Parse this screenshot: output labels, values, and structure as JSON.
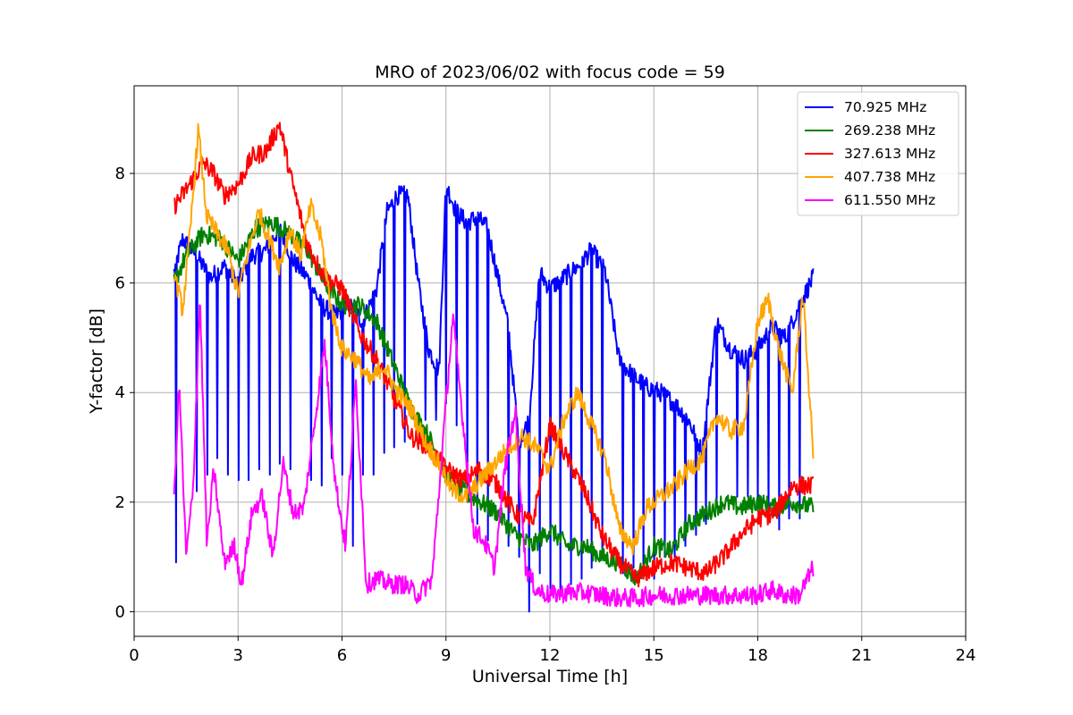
{
  "chart_data": {
    "type": "line",
    "title": "MRO of 2023/06/02 with focus code = 59",
    "xlabel": "Universal Time [h]",
    "ylabel": "Y-factor [dB]",
    "xlim": [
      0,
      24
    ],
    "ylim": [
      -0.45,
      9.6
    ],
    "x_ticks": [
      0,
      3,
      6,
      9,
      12,
      15,
      18,
      21,
      24
    ],
    "y_ticks": [
      0,
      2,
      4,
      6,
      8
    ],
    "grid": true,
    "legend_position": "top-right",
    "series": [
      {
        "name": " 70.925 MHz",
        "color": "#0000ff",
        "x": [
          1.15,
          1.4,
          1.8,
          2.2,
          2.6,
          3.0,
          3.4,
          3.8,
          4.2,
          4.6,
          5.0,
          5.4,
          5.8,
          6.2,
          6.6,
          7.0,
          7.3,
          7.6,
          7.9,
          8.2,
          8.5,
          8.8,
          9.0,
          9.3,
          9.6,
          9.9,
          10.2,
          10.5,
          10.8,
          11.1,
          11.4,
          11.7,
          12.0,
          12.4,
          12.8,
          13.2,
          13.6,
          14.0,
          14.4,
          14.8,
          15.2,
          15.6,
          16.0,
          16.4,
          16.8,
          17.2,
          17.6,
          18.0,
          18.4,
          18.8,
          19.2,
          19.6
        ],
        "y": [
          6.2,
          6.8,
          6.5,
          6.1,
          6.3,
          6.0,
          6.5,
          6.6,
          7.0,
          6.4,
          6.1,
          5.6,
          5.4,
          5.6,
          5.3,
          5.9,
          7.3,
          7.6,
          7.6,
          6.0,
          4.8,
          4.4,
          7.8,
          7.3,
          7.1,
          7.2,
          7.0,
          6.1,
          5.2,
          3.1,
          3.5,
          6.2,
          5.9,
          6.1,
          6.3,
          6.6,
          6.2,
          4.6,
          4.3,
          4.1,
          4.0,
          3.8,
          3.5,
          2.9,
          5.3,
          4.8,
          4.6,
          4.8,
          5.2,
          5.0,
          5.6,
          6.1
        ],
        "dips": [
          0.9,
          2.2,
          2.5,
          2.8,
          2.5,
          2.4,
          2.6,
          2.5,
          2.7,
          2.6,
          2.4,
          2.3,
          2.8,
          2.5,
          1.2,
          2.5,
          2.9,
          3.0,
          3.1,
          3.3,
          3.5,
          3.8,
          3.4,
          2.0,
          1.6,
          1.3,
          1.2,
          1.0,
          0.0,
          0.7,
          0.4,
          0.5,
          0.6,
          0.8,
          1.0,
          0.7,
          0.8,
          0.6,
          0.6,
          1.0,
          1.2,
          1.4,
          1.6,
          1.9,
          2.1,
          2.1,
          2.0,
          1.8,
          1.5,
          1.7,
          2.2,
          6.1
        ]
      },
      {
        "name": "269.238 MHz",
        "color": "#008000",
        "x": [
          1.15,
          1.5,
          2.0,
          2.5,
          3.0,
          3.5,
          4.0,
          4.5,
          5.0,
          5.5,
          6.0,
          6.5,
          7.0,
          7.5,
          8.0,
          8.5,
          9.0,
          9.5,
          10.0,
          10.5,
          11.0,
          11.5,
          12.0,
          12.5,
          13.0,
          13.5,
          14.0,
          14.5,
          15.0,
          15.5,
          16.0,
          16.5,
          17.0,
          17.5,
          18.0,
          18.5,
          19.0,
          19.6
        ],
        "y": [
          6.0,
          6.5,
          6.9,
          6.8,
          6.4,
          7.0,
          7.1,
          6.9,
          6.6,
          6.0,
          5.6,
          5.6,
          5.3,
          4.5,
          3.7,
          3.2,
          2.5,
          2.2,
          2.0,
          1.8,
          1.4,
          1.2,
          1.5,
          1.2,
          1.2,
          1.0,
          0.9,
          0.6,
          1.2,
          1.1,
          1.6,
          1.8,
          2.0,
          1.9,
          2.0,
          1.9,
          2.0,
          1.9
        ]
      },
      {
        "name": "327.613 MHz",
        "color": "#ff0000",
        "x": [
          1.15,
          1.5,
          2.0,
          2.3,
          2.6,
          3.0,
          3.4,
          3.8,
          4.2,
          4.5,
          5.0,
          5.5,
          6.0,
          6.5,
          7.0,
          7.5,
          8.0,
          8.5,
          9.0,
          9.5,
          10.0,
          10.5,
          11.0,
          11.5,
          12.0,
          12.5,
          13.0,
          13.5,
          14.0,
          14.5,
          15.0,
          15.5,
          16.0,
          16.5,
          17.0,
          17.5,
          18.0,
          18.5,
          19.0,
          19.6
        ],
        "y": [
          7.4,
          7.7,
          8.2,
          8.0,
          7.6,
          7.8,
          8.3,
          8.4,
          8.9,
          8.0,
          6.7,
          6.1,
          5.9,
          5.1,
          4.6,
          3.9,
          3.2,
          3.0,
          2.6,
          2.4,
          2.6,
          2.3,
          1.8,
          1.6,
          3.4,
          2.8,
          2.2,
          1.4,
          0.9,
          0.6,
          0.8,
          0.9,
          0.8,
          0.7,
          1.0,
          1.4,
          1.7,
          1.8,
          2.3,
          2.3
        ]
      },
      {
        "name": "407.738 MHz",
        "color": "#ffa500",
        "x": [
          1.15,
          1.4,
          1.6,
          1.85,
          2.1,
          2.4,
          2.7,
          3.0,
          3.3,
          3.6,
          3.9,
          4.2,
          4.5,
          4.8,
          5.1,
          5.4,
          5.7,
          6.0,
          6.4,
          6.8,
          7.2,
          7.6,
          8.0,
          8.4,
          8.8,
          9.2,
          9.6,
          10.0,
          10.4,
          10.8,
          11.2,
          11.6,
          12.0,
          12.4,
          12.8,
          13.2,
          13.6,
          14.0,
          14.4,
          14.8,
          15.2,
          15.6,
          16.0,
          16.4,
          16.8,
          17.2,
          17.6,
          18.0,
          18.3,
          18.6,
          19.0,
          19.3,
          19.6
        ],
        "y": [
          6.2,
          5.5,
          6.8,
          8.8,
          7.2,
          6.9,
          6.6,
          5.8,
          6.6,
          7.3,
          6.8,
          6.3,
          7.0,
          6.5,
          7.4,
          6.8,
          5.5,
          4.8,
          4.6,
          4.2,
          4.5,
          4.0,
          3.7,
          3.1,
          2.7,
          2.2,
          2.1,
          2.4,
          2.7,
          3.0,
          3.2,
          3.0,
          2.6,
          3.5,
          4.0,
          3.4,
          2.8,
          1.5,
          1.2,
          1.9,
          2.1,
          2.3,
          2.6,
          2.8,
          3.6,
          3.3,
          3.4,
          5.3,
          5.7,
          4.8,
          4.0,
          5.8,
          2.9
        ]
      },
      {
        "name": "611.550 MHz",
        "color": "#ff00ff",
        "x": [
          1.15,
          1.3,
          1.5,
          1.7,
          1.9,
          2.1,
          2.3,
          2.6,
          2.9,
          3.1,
          3.4,
          3.7,
          4.0,
          4.3,
          4.6,
          4.9,
          5.2,
          5.5,
          5.8,
          6.1,
          6.4,
          6.7,
          7.0,
          7.4,
          7.8,
          8.2,
          8.6,
          8.9,
          9.2,
          9.5,
          9.8,
          10.1,
          10.4,
          10.7,
          11.0,
          11.3,
          11.6,
          12.0,
          12.5,
          13.0,
          13.5,
          14.0,
          14.5,
          15.0,
          15.5,
          16.0,
          16.5,
          17.0,
          17.5,
          18.0,
          18.4,
          18.8,
          19.2,
          19.6
        ],
        "y": [
          2.0,
          4.2,
          1.0,
          2.2,
          5.8,
          1.2,
          2.6,
          0.9,
          1.2,
          0.5,
          1.8,
          2.1,
          1.0,
          2.7,
          1.8,
          1.9,
          3.4,
          4.9,
          2.4,
          1.2,
          4.2,
          0.5,
          0.6,
          0.5,
          0.5,
          0.3,
          0.6,
          3.0,
          5.4,
          3.4,
          1.5,
          1.3,
          0.8,
          2.6,
          3.7,
          0.8,
          0.4,
          0.3,
          0.35,
          0.35,
          0.3,
          0.25,
          0.25,
          0.3,
          0.3,
          0.3,
          0.3,
          0.3,
          0.3,
          0.3,
          0.4,
          0.3,
          0.3,
          0.8
        ]
      }
    ]
  }
}
